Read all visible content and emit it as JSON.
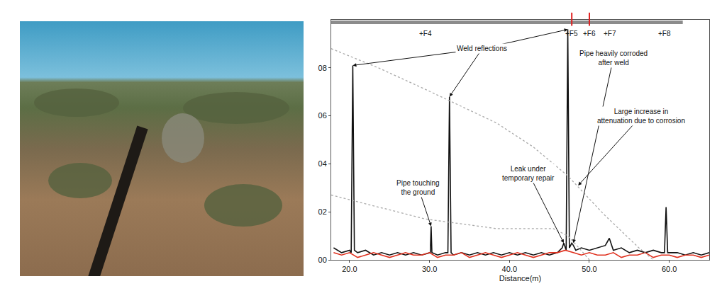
{
  "chart_data": {
    "type": "line",
    "xlabel": "Distance(m)",
    "xlim": [
      17.7,
      65
    ],
    "xticks": [
      {
        "value": 20,
        "label": "20.0"
      },
      {
        "value": 30,
        "label": "30.0"
      },
      {
        "value": 40,
        "label": "40.0"
      },
      {
        "value": 50,
        "label": "50.0"
      },
      {
        "value": 60,
        "label": "60.0"
      }
    ],
    "ylim": [
      0,
      1.0
    ],
    "yticks": [
      {
        "value": 0,
        "label": "00"
      },
      {
        "value": 0.2,
        "label": "02"
      },
      {
        "value": 0.4,
        "label": "04"
      },
      {
        "value": 0.6,
        "label": "06"
      },
      {
        "value": 0.8,
        "label": "08"
      }
    ],
    "grid": false,
    "series": [
      {
        "color": "#111111",
        "line_style": "solid",
        "x": [
          18,
          19,
          20,
          20.2,
          20.4,
          20.6,
          21,
          22,
          23,
          24,
          25,
          26,
          27,
          28,
          29,
          30,
          30.1,
          30.2,
          30.3,
          31,
          32,
          32.3,
          32.5,
          32.7,
          33,
          34,
          35,
          36,
          37,
          38,
          39,
          40,
          41,
          42,
          43,
          44,
          45,
          46,
          46.6,
          46.8,
          47.0,
          47.1,
          47.3,
          47.5,
          47.8,
          48.0,
          48.3,
          49,
          50,
          51,
          52,
          52.5,
          53,
          54,
          55,
          56,
          57,
          58,
          59,
          59.4,
          59.6,
          59.8,
          60,
          61,
          62,
          63,
          64,
          65
        ],
        "values": [
          0.05,
          0.03,
          0.04,
          0.03,
          0.81,
          0.04,
          0.03,
          0.04,
          0.02,
          0.03,
          0.02,
          0.03,
          0.02,
          0.03,
          0.02,
          0.03,
          0.03,
          0.14,
          0.03,
          0.02,
          0.03,
          0.03,
          0.68,
          0.03,
          0.02,
          0.03,
          0.02,
          0.03,
          0.02,
          0.03,
          0.02,
          0.03,
          0.02,
          0.03,
          0.02,
          0.03,
          0.02,
          0.03,
          0.05,
          0.07,
          0.05,
          0.04,
          0.96,
          0.05,
          0.07,
          0.06,
          0.04,
          0.05,
          0.04,
          0.05,
          0.06,
          0.09,
          0.04,
          0.05,
          0.03,
          0.04,
          0.03,
          0.04,
          0.03,
          0.03,
          0.22,
          0.03,
          0.03,
          0.03,
          0.02,
          0.03,
          0.02,
          0.03
        ]
      },
      {
        "color": "#e0301e",
        "line_style": "solid",
        "x": [
          18,
          19,
          20,
          21,
          22,
          23,
          24,
          25,
          26,
          27,
          28,
          29,
          30,
          31,
          32,
          33,
          34,
          35,
          36,
          37,
          38,
          39,
          40,
          41,
          42,
          43,
          44,
          45,
          46,
          47,
          48,
          49,
          50,
          51,
          52,
          53,
          54,
          55,
          56,
          57,
          58,
          59,
          60,
          61,
          62,
          63,
          64,
          65
        ],
        "values": [
          0.03,
          0.02,
          0.03,
          0.01,
          0.02,
          0.03,
          0.02,
          0.01,
          0.02,
          0.03,
          0.02,
          0.02,
          0.03,
          0.01,
          0.02,
          0.02,
          0.03,
          0.01,
          0.02,
          0.03,
          0.02,
          0.01,
          0.02,
          0.03,
          0.02,
          0.01,
          0.02,
          0.03,
          0.03,
          0.04,
          0.03,
          0.02,
          0.03,
          0.02,
          0.02,
          0.03,
          0.01,
          0.02,
          0.02,
          0.03,
          0.01,
          0.02,
          0.02,
          0.01,
          0.02,
          0.02,
          0.01,
          0.02
        ]
      },
      {
        "color": "#aaaaaa",
        "line_style": "dotted",
        "x": [
          17.7,
          23.6,
          29.5,
          34,
          38.4,
          43,
          47.3,
          51.8,
          56.2,
          58.0
        ],
        "values": [
          0.88,
          0.8,
          0.71,
          0.64,
          0.57,
          0.47,
          0.35,
          0.19,
          0.05,
          0.0
        ]
      },
      {
        "color": "#aaaaaa",
        "line_style": "dotted",
        "x": [
          17.7,
          23.6,
          29.5,
          34,
          38.4,
          45.5,
          47.3,
          48.7,
          50.0
        ],
        "values": [
          0.27,
          0.22,
          0.17,
          0.15,
          0.13,
          0.13,
          0.1,
          0.05,
          0.0
        ]
      }
    ],
    "annotations": [
      {
        "text": [
          "Weld reflections"
        ],
        "x": 36.6,
        "y": 0.88,
        "points_to": [
          [
            20.4,
            0.81
          ],
          [
            32.5,
            0.68
          ],
          [
            47.3,
            0.96
          ]
        ]
      },
      {
        "text": [
          "Pipe touching",
          "the ground"
        ],
        "x": 28.6,
        "y": 0.3,
        "points_to": [
          [
            30.2,
            0.14
          ]
        ]
      },
      {
        "text": [
          "Leak under",
          "temporary repair"
        ],
        "x": 42.4,
        "y": 0.36,
        "points_to": [
          [
            46.8,
            0.07
          ]
        ]
      },
      {
        "text": [
          "Pipe heavily corroded",
          "after weld"
        ],
        "x": 53.0,
        "y": 0.84,
        "points_to": [
          [
            48.0,
            0.07
          ]
        ]
      },
      {
        "text": [
          "Large increase in",
          "attenuation due to corrosion"
        ],
        "x": 56.5,
        "y": 0.6,
        "points_to": [
          [
            48.6,
            0.31
          ]
        ]
      }
    ],
    "markers": [
      {
        "label": "+F4",
        "x": 29.5
      },
      {
        "label": "+F5",
        "x": 47.8,
        "color": "#e02020"
      },
      {
        "label": "+F6",
        "x": 50.0,
        "color": "#e02020"
      },
      {
        "label": "+F7",
        "x": 52.6
      },
      {
        "label": "+F8",
        "x": 59.4
      }
    ]
  }
}
